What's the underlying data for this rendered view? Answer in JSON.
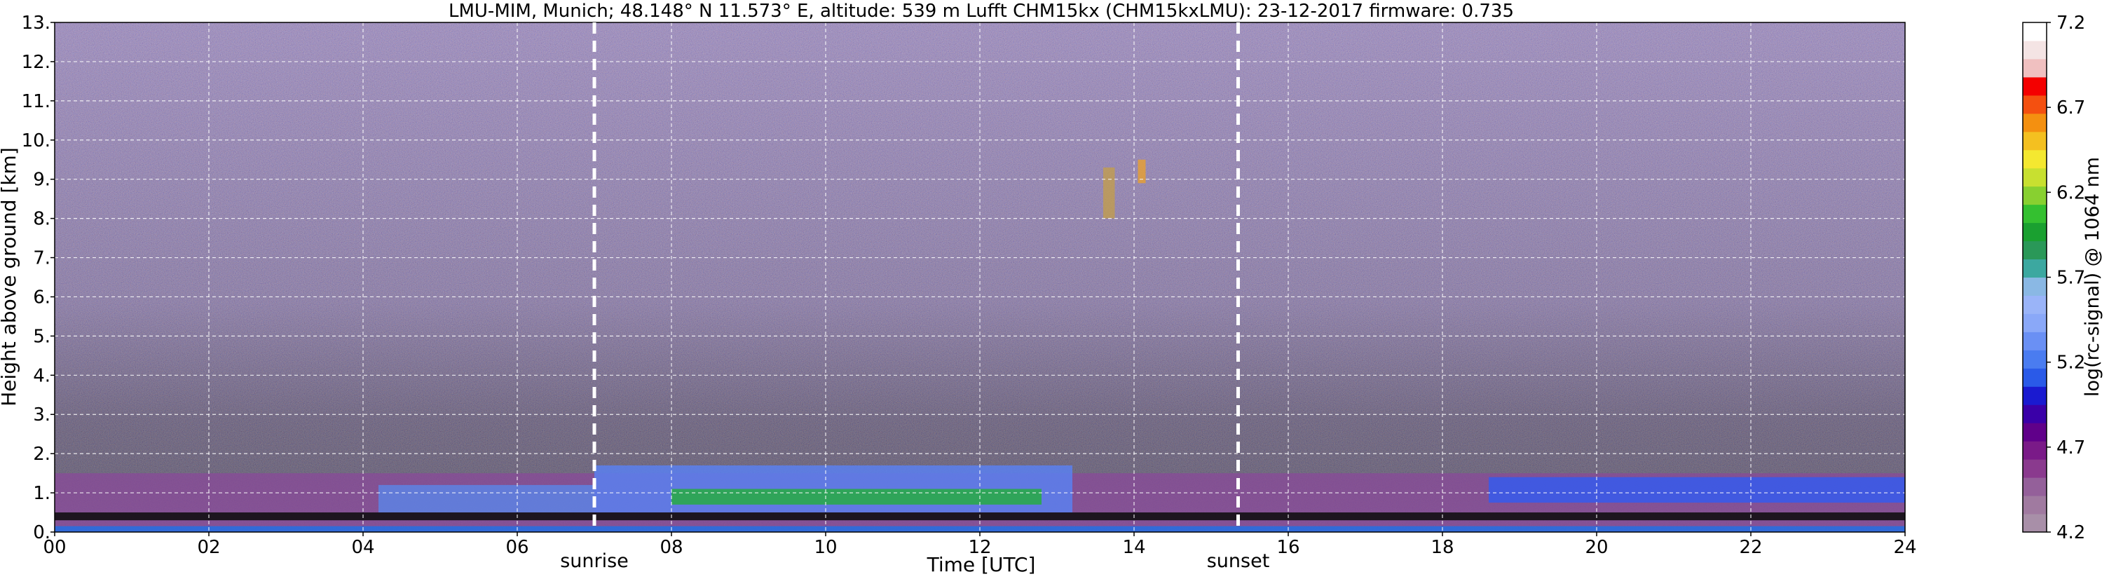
{
  "chart_data": {
    "type": "heatmap",
    "title": "LMU-MIM, Munich; 48.148° N 11.573° E, altitude: 539 m    Lufft CHM15kx (CHM15kxLMU): 23-12-2017    firmware: 0.735",
    "xlabel": "Time [UTC]",
    "ylabel": "Height above ground [km]",
    "xlim": [
      0,
      24
    ],
    "ylim": [
      0,
      13
    ],
    "x_ticks": [
      0,
      2,
      4,
      6,
      8,
      10,
      12,
      14,
      16,
      18,
      20,
      22,
      24
    ],
    "x_tick_labels": [
      "00",
      "02",
      "04",
      "06",
      "08",
      "10",
      "12",
      "14",
      "16",
      "18",
      "20",
      "22",
      "24"
    ],
    "y_ticks": [
      0,
      1,
      2,
      3,
      4,
      5,
      6,
      7,
      8,
      9,
      10,
      11,
      12,
      13
    ],
    "y_tick_labels": [
      "0.",
      "1.",
      "2.",
      "3.",
      "4.",
      "5.",
      "6.",
      "7.",
      "8.",
      "9.",
      "10.",
      "11.",
      "12.",
      "13."
    ],
    "grid": true,
    "events": [
      {
        "label": "sunrise",
        "x": 7.0
      },
      {
        "label": "sunset",
        "x": 15.35
      }
    ],
    "colorbar": {
      "label": "log(rc-signal) @ 1064 nm",
      "range": [
        4.2,
        7.2
      ],
      "tick_values": [
        4.2,
        4.7,
        5.2,
        5.7,
        6.2,
        6.7,
        7.2
      ],
      "tick_labels": [
        "4.2",
        "4.7",
        "5.2",
        "5.7",
        "6.2",
        "6.7",
        "7.2"
      ],
      "colors": [
        "#a88fa8",
        "#a07aa0",
        "#94609a",
        "#8a3a8e",
        "#7a1a88",
        "#60008a",
        "#3a00a8",
        "#1a1ad0",
        "#2a5ae8",
        "#4a7cf0",
        "#6a90f4",
        "#8aa8f8",
        "#9ab4f8",
        "#8ab8e4",
        "#3ca8a0",
        "#2a9858",
        "#1aa030",
        "#34c030",
        "#88d030",
        "#c8e030",
        "#f4e830",
        "#f4c020",
        "#f49010",
        "#f45010",
        "#f40000",
        "#f0c0c0",
        "#f4e4e4",
        "#ffffff"
      ]
    },
    "layers": [
      {
        "name": "boundary-layer-aerosol",
        "height_km": [
          0.3,
          1.5
        ],
        "time_range": [
          0,
          24
        ]
      },
      {
        "name": "elevated-aerosol-band-day",
        "height_km": [
          0.6,
          1.7
        ],
        "time_range": [
          7,
          13.5
        ]
      },
      {
        "name": "cloud-returns",
        "height_km": [
          8.0,
          9.5
        ],
        "time_range": [
          13.0,
          14.2
        ]
      }
    ]
  }
}
